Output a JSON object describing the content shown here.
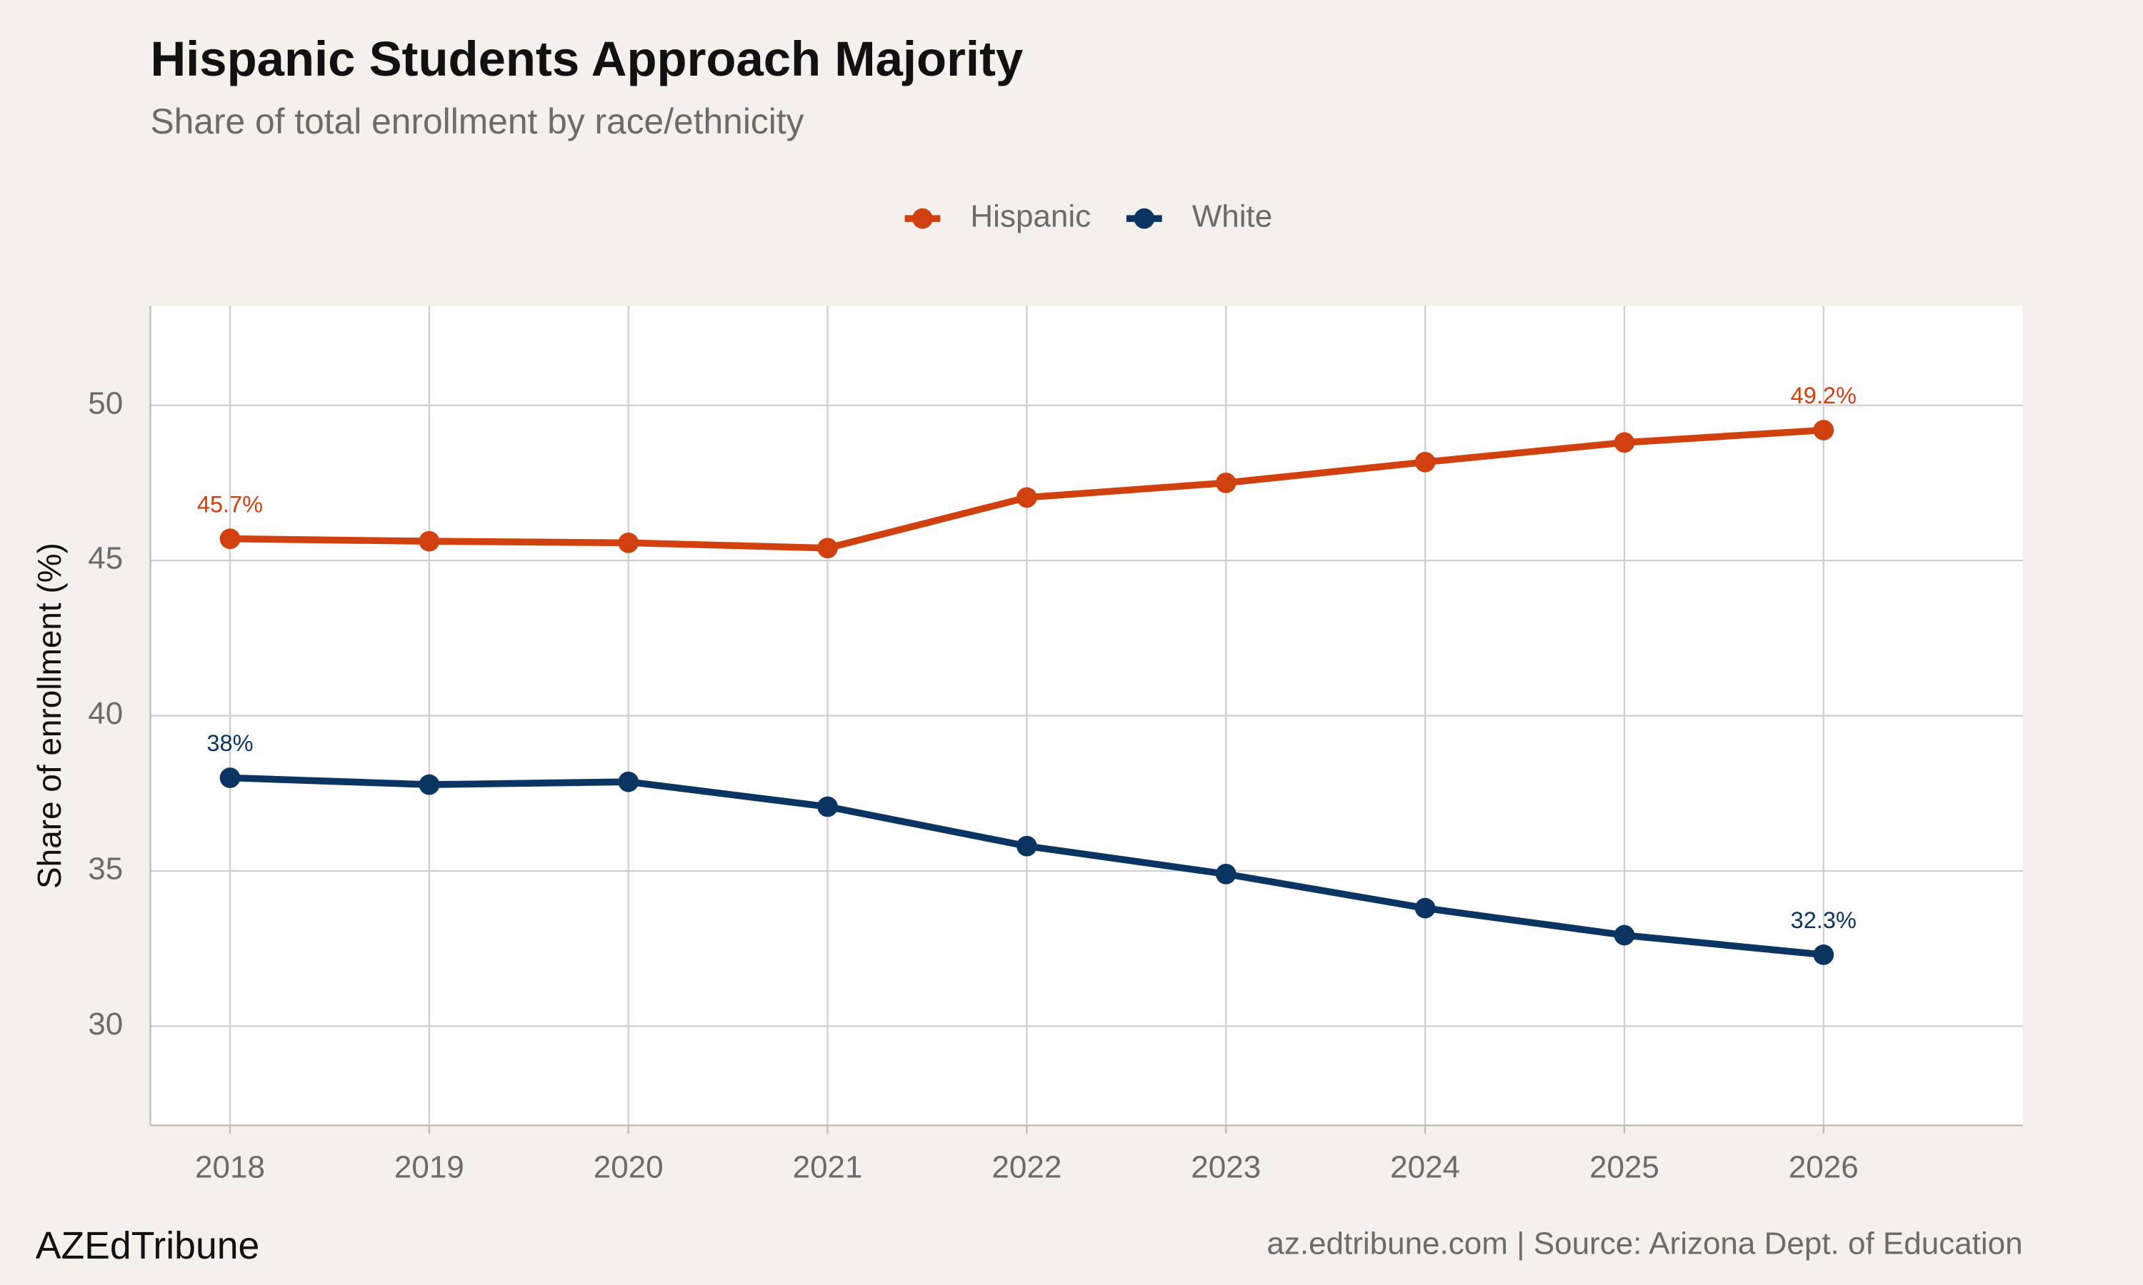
{
  "chart_data": {
    "type": "line",
    "title": "Hispanic Students Approach Majority",
    "subtitle": "Share of total enrollment by race/ethnicity",
    "y_label": "Share of enrollment (%)",
    "x": [
      2018,
      2019,
      2020,
      2021,
      2022,
      2023,
      2024,
      2025,
      2026
    ],
    "series": [
      {
        "name": "Hispanic",
        "color": "#d1410f",
        "values": [
          45.7,
          45.62,
          45.57,
          45.4,
          47.03,
          47.5,
          48.17,
          48.8,
          49.2
        ],
        "value_labels": [
          "45.7%",
          null,
          null,
          null,
          null,
          null,
          null,
          null,
          "49.2%"
        ]
      },
      {
        "name": "White",
        "color": "#0a3462",
        "values": [
          38,
          37.78,
          37.87,
          37.07,
          35.8,
          34.9,
          33.8,
          32.93,
          32.3
        ],
        "value_labels": [
          "38%",
          null,
          null,
          null,
          null,
          null,
          null,
          null,
          "32.3%"
        ]
      }
    ],
    "xlim": [
      2017.6,
      2027.0
    ],
    "xticks": [
      2018,
      2019,
      2020,
      2021,
      2022,
      2023,
      2024,
      2025,
      2026
    ],
    "ylim": [
      26.8,
      53.2
    ],
    "yticks": [
      30,
      35,
      40,
      45,
      50
    ],
    "grid": true,
    "legend": "top",
    "footer_left": "AZEdTribune",
    "footer_right": "az.edtribune.com | Source: Arizona Dept. of Education"
  }
}
